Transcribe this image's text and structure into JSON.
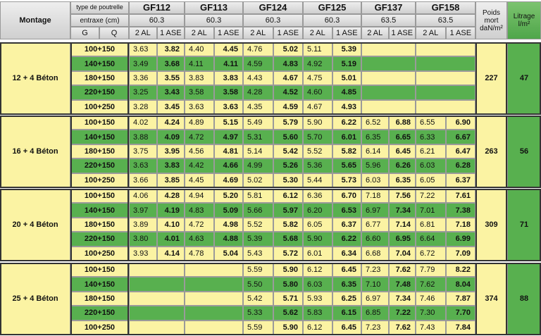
{
  "header": {
    "montage": "Montage",
    "type_label": "type de poutrelle",
    "entraxe_label": "entraxe (cm)",
    "g": "G",
    "q": "Q",
    "sub": [
      "2 AL",
      "1 ASE"
    ],
    "poids": "Poids mort daN/m²",
    "litrage": "Litrage l/m²",
    "products": [
      {
        "name": "GF112",
        "entraxe": "60.3"
      },
      {
        "name": "GF113",
        "entraxe": "60.3"
      },
      {
        "name": "GF124",
        "entraxe": "60.3"
      },
      {
        "name": "GF125",
        "entraxe": "60.3"
      },
      {
        "name": "GF137",
        "entraxe": "63.5"
      },
      {
        "name": "GF158",
        "entraxe": "63.5"
      }
    ]
  },
  "groups": [
    {
      "label": "12 + 4 Béton",
      "poids": "227",
      "litrage": "47",
      "rows": [
        {
          "load": "100+150",
          "values": [
            [
              "3.63",
              "3.82"
            ],
            [
              "4.40",
              "4.45"
            ],
            [
              "4.76",
              "5.02"
            ],
            [
              "5.11",
              "5.39"
            ],
            null,
            null
          ]
        },
        {
          "load": "140+150",
          "values": [
            [
              "3.49",
              "3.68"
            ],
            [
              "4.11",
              "4.11"
            ],
            [
              "4.59",
              "4.83"
            ],
            [
              "4.92",
              "5.19"
            ],
            null,
            null
          ]
        },
        {
          "load": "180+150",
          "values": [
            [
              "3.36",
              "3.55"
            ],
            [
              "3.83",
              "3.83"
            ],
            [
              "4.43",
              "4.67"
            ],
            [
              "4.75",
              "5.01"
            ],
            null,
            null
          ]
        },
        {
          "load": "220+150",
          "values": [
            [
              "3.25",
              "3.43"
            ],
            [
              "3.58",
              "3.58"
            ],
            [
              "4.28",
              "4.52"
            ],
            [
              "4.60",
              "4.85"
            ],
            null,
            null
          ]
        },
        {
          "load": "100+250",
          "values": [
            [
              "3.28",
              "3.45"
            ],
            [
              "3.63",
              "3.63"
            ],
            [
              "4.35",
              "4.59"
            ],
            [
              "4.67",
              "4.93"
            ],
            null,
            null
          ]
        }
      ]
    },
    {
      "label": "16 + 4 Béton",
      "poids": "263",
      "litrage": "56",
      "rows": [
        {
          "load": "100+150",
          "values": [
            [
              "4.02",
              "4.24"
            ],
            [
              "4.89",
              "5.15"
            ],
            [
              "5.49",
              "5.79"
            ],
            [
              "5.90",
              "6.22"
            ],
            [
              "6.52",
              "6.88"
            ],
            [
              "6.55",
              "6.90"
            ]
          ]
        },
        {
          "load": "140+150",
          "values": [
            [
              "3.88",
              "4.09"
            ],
            [
              "4.72",
              "4.97"
            ],
            [
              "5.31",
              "5.60"
            ],
            [
              "5.70",
              "6.01"
            ],
            [
              "6.35",
              "6.65"
            ],
            [
              "6.33",
              "6.67"
            ]
          ]
        },
        {
          "load": "180+150",
          "values": [
            [
              "3.75",
              "3.95"
            ],
            [
              "4.56",
              "4.81"
            ],
            [
              "5.14",
              "5.42"
            ],
            [
              "5.52",
              "5.82"
            ],
            [
              "6.14",
              "6.45"
            ],
            [
              "6.21",
              "6.47"
            ]
          ]
        },
        {
          "load": "220+150",
          "values": [
            [
              "3.63",
              "3.83"
            ],
            [
              "4.42",
              "4.66"
            ],
            [
              "4.99",
              "5.26"
            ],
            [
              "5.36",
              "5.65"
            ],
            [
              "5.96",
              "6.26"
            ],
            [
              "6.03",
              "6.28"
            ]
          ]
        },
        {
          "load": "100+250",
          "values": [
            [
              "3.66",
              "3.85"
            ],
            [
              "4.45",
              "4.69"
            ],
            [
              "5.02",
              "5.30"
            ],
            [
              "5.44",
              "5.73"
            ],
            [
              "6.03",
              "6.35"
            ],
            [
              "6.05",
              "6.37"
            ]
          ]
        }
      ]
    },
    {
      "label": "20 + 4 Béton",
      "poids": "309",
      "litrage": "71",
      "rows": [
        {
          "load": "100+150",
          "values": [
            [
              "4.06",
              "4.28"
            ],
            [
              "4.94",
              "5.20"
            ],
            [
              "5.81",
              "6.12"
            ],
            [
              "6.36",
              "6.70"
            ],
            [
              "7.18",
              "7.56"
            ],
            [
              "7.22",
              "7.61"
            ]
          ]
        },
        {
          "load": "140+150",
          "values": [
            [
              "3.97",
              "4.19"
            ],
            [
              "4.83",
              "5.09"
            ],
            [
              "5.66",
              "5.97"
            ],
            [
              "6.20",
              "6.53"
            ],
            [
              "6.97",
              "7.34"
            ],
            [
              "7.01",
              "7.38"
            ]
          ]
        },
        {
          "load": "180+150",
          "values": [
            [
              "3.89",
              "4.10"
            ],
            [
              "4.72",
              "4.98"
            ],
            [
              "5.52",
              "5.82"
            ],
            [
              "6.05",
              "6.37"
            ],
            [
              "6.77",
              "7.14"
            ],
            [
              "6.81",
              "7.18"
            ]
          ]
        },
        {
          "load": "220+150",
          "values": [
            [
              "3.80",
              "4.01"
            ],
            [
              "4.63",
              "4.88"
            ],
            [
              "5.39",
              "5.68"
            ],
            [
              "5.90",
              "6.22"
            ],
            [
              "6.60",
              "6.95"
            ],
            [
              "6.64",
              "6.99"
            ]
          ]
        },
        {
          "load": "100+250",
          "values": [
            [
              "3.93",
              "4.14"
            ],
            [
              "4.78",
              "5.04"
            ],
            [
              "5.43",
              "5.72"
            ],
            [
              "6.01",
              "6.34"
            ],
            [
              "6.68",
              "7.04"
            ],
            [
              "6.72",
              "7.09"
            ]
          ]
        }
      ]
    },
    {
      "label": "25 + 4 Béton",
      "poids": "374",
      "litrage": "88",
      "rows": [
        {
          "load": "100+150",
          "values": [
            null,
            null,
            [
              "5.59",
              "5.90"
            ],
            [
              "6.12",
              "6.45"
            ],
            [
              "7.23",
              "7.62"
            ],
            [
              "7.79",
              "8.22"
            ]
          ]
        },
        {
          "load": "140+150",
          "values": [
            null,
            null,
            [
              "5.50",
              "5.80"
            ],
            [
              "6.03",
              "6.35"
            ],
            [
              "7.10",
              "7.48"
            ],
            [
              "7.62",
              "8.04"
            ]
          ]
        },
        {
          "load": "180+150",
          "values": [
            null,
            null,
            [
              "5.42",
              "5.71"
            ],
            [
              "5.93",
              "6.25"
            ],
            [
              "6.97",
              "7.34"
            ],
            [
              "7.46",
              "7.87"
            ]
          ]
        },
        {
          "load": "220+150",
          "values": [
            null,
            null,
            [
              "5.33",
              "5.62"
            ],
            [
              "5.83",
              "6.15"
            ],
            [
              "6.85",
              "7.22"
            ],
            [
              "7.30",
              "7.70"
            ]
          ]
        },
        {
          "load": "100+250",
          "values": [
            null,
            null,
            [
              "5.59",
              "5.90"
            ],
            [
              "6.12",
              "6.45"
            ],
            [
              "7.23",
              "7.62"
            ],
            [
              "7.43",
              "7.84"
            ]
          ]
        }
      ]
    }
  ]
}
